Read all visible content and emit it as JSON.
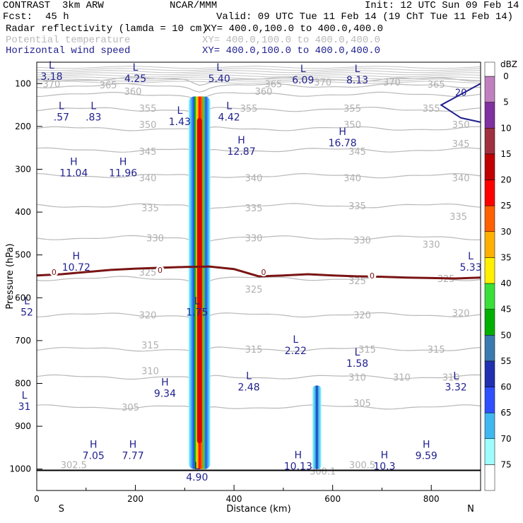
{
  "header": {
    "model": "CONTRAST  3km ARW",
    "org": "NCAR/MMM",
    "init": "Init: 12 UTC Sun 09 Feb 14",
    "fcst_label": "Fcst:",
    "fcst_value": "45 h",
    "valid": "Valid: 09 UTC Tue 11 Feb 14 (19 ChT Tue 11 Feb 14)",
    "fields": [
      {
        "name": "Radar reflectivity (lamda = 10 cm)",
        "xy": "XY= 400.0,100.0 to 400.0,400.0",
        "color": "#000000"
      },
      {
        "name": "Potential temperature",
        "xy": "XY= 400.0,100.0 to 400.0,400.0",
        "color": "#b8b8b8"
      },
      {
        "name": "Horizontal wind speed",
        "xy": "XY= 400.0,100.0 to 400.0,400.0",
        "color": "#1f1f8f"
      }
    ]
  },
  "chart_data": {
    "type": "cross-section",
    "xlabel": "Distance (km)",
    "ylabel": "Pressure (hPa)",
    "xlim": [
      0,
      900
    ],
    "ylim": [
      1050,
      50
    ],
    "x_ticks": [
      0,
      200,
      400,
      600,
      800
    ],
    "y_ticks": [
      100,
      200,
      300,
      400,
      500,
      600,
      700,
      800,
      900,
      1000
    ],
    "x_end_labels": {
      "left": "S",
      "right": "N"
    },
    "colorbar": {
      "title": "dBZ",
      "levels": [
        0,
        5,
        10,
        15,
        20,
        25,
        30,
        35,
        40,
        45,
        50,
        55,
        60,
        65,
        70,
        75
      ],
      "colors": [
        "#ffffff",
        "#9ffcfc",
        "#3fb8f0",
        "#3050ff",
        "#2030b0",
        "#3a7ab0",
        "#00b000",
        "#38e038",
        "#fff000",
        "#ffb000",
        "#ff6000",
        "#ff0000",
        "#c00000",
        "#a03040",
        "#8030a0",
        "#c080c0"
      ]
    },
    "theta_contours": [
      {
        "value": 370,
        "p": 90
      },
      {
        "value": 365,
        "p": 105
      },
      {
        "value": 360,
        "p": 125
      },
      {
        "value": 355,
        "p": 160
      },
      {
        "value": 350,
        "p": 205
      },
      {
        "value": 345,
        "p": 255
      },
      {
        "value": 340,
        "p": 315
      },
      {
        "value": 335,
        "p": 385
      },
      {
        "value": 330,
        "p": 460
      },
      {
        "value": 325,
        "p": 555
      },
      {
        "value": 320,
        "p": 640
      },
      {
        "value": 315,
        "p": 720
      },
      {
        "value": 310,
        "p": 785
      },
      {
        "value": 305,
        "p": 855
      }
    ],
    "theta_labels": [
      {
        "text": "370",
        "x": 30,
        "p": 100
      },
      {
        "text": "365",
        "x": 145,
        "p": 103
      },
      {
        "text": "360",
        "x": 195,
        "p": 118
      },
      {
        "text": "360",
        "x": 460,
        "p": 118
      },
      {
        "text": "365",
        "x": 480,
        "p": 100
      },
      {
        "text": "370",
        "x": 580,
        "p": 96
      },
      {
        "text": "370",
        "x": 720,
        "p": 96
      },
      {
        "text": "365",
        "x": 810,
        "p": 101
      },
      {
        "text": "355",
        "x": 225,
        "p": 157
      },
      {
        "text": "355",
        "x": 430,
        "p": 157
      },
      {
        "text": "355",
        "x": 640,
        "p": 157
      },
      {
        "text": "355",
        "x": 800,
        "p": 157
      },
      {
        "text": "350",
        "x": 225,
        "p": 195
      },
      {
        "text": "350",
        "x": 640,
        "p": 195
      },
      {
        "text": "350",
        "x": 860,
        "p": 195
      },
      {
        "text": "345",
        "x": 225,
        "p": 258
      },
      {
        "text": "345",
        "x": 650,
        "p": 258
      },
      {
        "text": "345",
        "x": 860,
        "p": 240
      },
      {
        "text": "340",
        "x": 225,
        "p": 320
      },
      {
        "text": "340",
        "x": 440,
        "p": 320
      },
      {
        "text": "340",
        "x": 640,
        "p": 320
      },
      {
        "text": "340",
        "x": 860,
        "p": 320
      },
      {
        "text": "335",
        "x": 230,
        "p": 390
      },
      {
        "text": "335",
        "x": 440,
        "p": 390
      },
      {
        "text": "335",
        "x": 650,
        "p": 385
      },
      {
        "text": "335",
        "x": 855,
        "p": 410
      },
      {
        "text": "330",
        "x": 240,
        "p": 460
      },
      {
        "text": "330",
        "x": 440,
        "p": 460
      },
      {
        "text": "330",
        "x": 660,
        "p": 465
      },
      {
        "text": "330",
        "x": 800,
        "p": 475
      },
      {
        "text": "325",
        "x": 225,
        "p": 540
      },
      {
        "text": "325",
        "x": 440,
        "p": 580
      },
      {
        "text": "325",
        "x": 650,
        "p": 560
      },
      {
        "text": "325",
        "x": 830,
        "p": 555
      },
      {
        "text": "320",
        "x": 225,
        "p": 640
      },
      {
        "text": "320",
        "x": 660,
        "p": 640
      },
      {
        "text": "320",
        "x": 860,
        "p": 635
      },
      {
        "text": "315",
        "x": 230,
        "p": 710
      },
      {
        "text": "315",
        "x": 440,
        "p": 720
      },
      {
        "text": "315",
        "x": 670,
        "p": 720
      },
      {
        "text": "315",
        "x": 810,
        "p": 720
      },
      {
        "text": "310",
        "x": 230,
        "p": 770
      },
      {
        "text": "310",
        "x": 650,
        "p": 785
      },
      {
        "text": "310",
        "x": 740,
        "p": 785
      },
      {
        "text": "310",
        "x": 840,
        "p": 785
      },
      {
        "text": "305",
        "x": 190,
        "p": 855
      },
      {
        "text": "305",
        "x": 660,
        "p": 845
      },
      {
        "text": "302.5",
        "x": 75,
        "p": 990
      },
      {
        "text": "300.1",
        "x": 580,
        "p": 1005
      },
      {
        "text": "300.5",
        "x": 660,
        "p": 990
      }
    ],
    "freezing_level": {
      "value": "0",
      "p_ranges": [
        548,
        545,
        540,
        535,
        532,
        530,
        528,
        527,
        533,
        550,
        548,
        545,
        548,
        550,
        551,
        553,
        554,
        555,
        553
      ]
    },
    "zero_labels": [
      {
        "x": 35,
        "p": 540
      },
      {
        "x": 250,
        "p": 535
      },
      {
        "x": 460,
        "p": 540
      },
      {
        "x": 680,
        "p": 548
      }
    ],
    "wind_extrema": [
      {
        "type": "L",
        "value": "3.18",
        "x": 30,
        "p": 75
      },
      {
        "type": "L",
        "value": "4.25",
        "x": 200,
        "p": 80
      },
      {
        "type": "L",
        "value": "5.40",
        "x": 370,
        "p": 80
      },
      {
        "type": "L",
        "value": "6.09",
        "x": 540,
        "p": 83
      },
      {
        "type": "L",
        "value": "8.13",
        "x": 650,
        "p": 83
      },
      {
        "type": "L",
        "value": ".57",
        "x": 50,
        "p": 170
      },
      {
        "type": "L",
        "value": ".83",
        "x": 115,
        "p": 170
      },
      {
        "type": "L",
        "value": "1.43",
        "x": 290,
        "p": 180
      },
      {
        "type": "L",
        "value": "4.42",
        "x": 390,
        "p": 170
      },
      {
        "type": "H",
        "value": "12.87",
        "x": 415,
        "p": 250
      },
      {
        "type": "H",
        "value": "16.78",
        "x": 620,
        "p": 230
      },
      {
        "type": "H",
        "value": "11.04",
        "x": 75,
        "p": 300
      },
      {
        "type": "H",
        "value": "11.96",
        "x": 175,
        "p": 300
      },
      {
        "type": "H",
        "value": "10.72",
        "x": 80,
        "p": 520
      },
      {
        "type": "L",
        "value": "5.33",
        "x": 880,
        "p": 520
      },
      {
        "type": "L",
        "value": "1.75",
        "x": 325,
        "p": 625
      },
      {
        "type": "L",
        "value": "52",
        "x": -20,
        "p": 625
      },
      {
        "type": "L",
        "value": "2.22",
        "x": 525,
        "p": 715
      },
      {
        "type": "L",
        "value": "1.58",
        "x": 650,
        "p": 745
      },
      {
        "type": "L",
        "value": "2.48",
        "x": 430,
        "p": 800
      },
      {
        "type": "L",
        "value": "3.32",
        "x": 850,
        "p": 800
      },
      {
        "type": "H",
        "value": "9.34",
        "x": 260,
        "p": 815
      },
      {
        "type": "L",
        "value": "31",
        "x": -25,
        "p": 845
      },
      {
        "type": "H",
        "value": "7.05",
        "x": 115,
        "p": 960
      },
      {
        "type": "H",
        "value": "7.77",
        "x": 195,
        "p": 960
      },
      {
        "type": "H",
        "value": "10.13",
        "x": 530,
        "p": 985
      },
      {
        "type": "H",
        "value": "10.3",
        "x": 705,
        "p": 985
      },
      {
        "type": "H",
        "value": "9.59",
        "x": 790,
        "p": 960
      },
      {
        "type": "L",
        "value": "4.90",
        "x": 325,
        "p": 1010
      }
    ],
    "wind_contour_label": {
      "text": "20",
      "x": 860,
      "p": 120
    },
    "convective_towers": [
      {
        "name": "main",
        "x_center": 330,
        "x_width": 22,
        "p_top": 130,
        "p_bottom": 1000
      },
      {
        "name": "secondary",
        "x_center": 568,
        "x_width": 9,
        "p_top": 805,
        "p_bottom": 1000
      }
    ]
  }
}
